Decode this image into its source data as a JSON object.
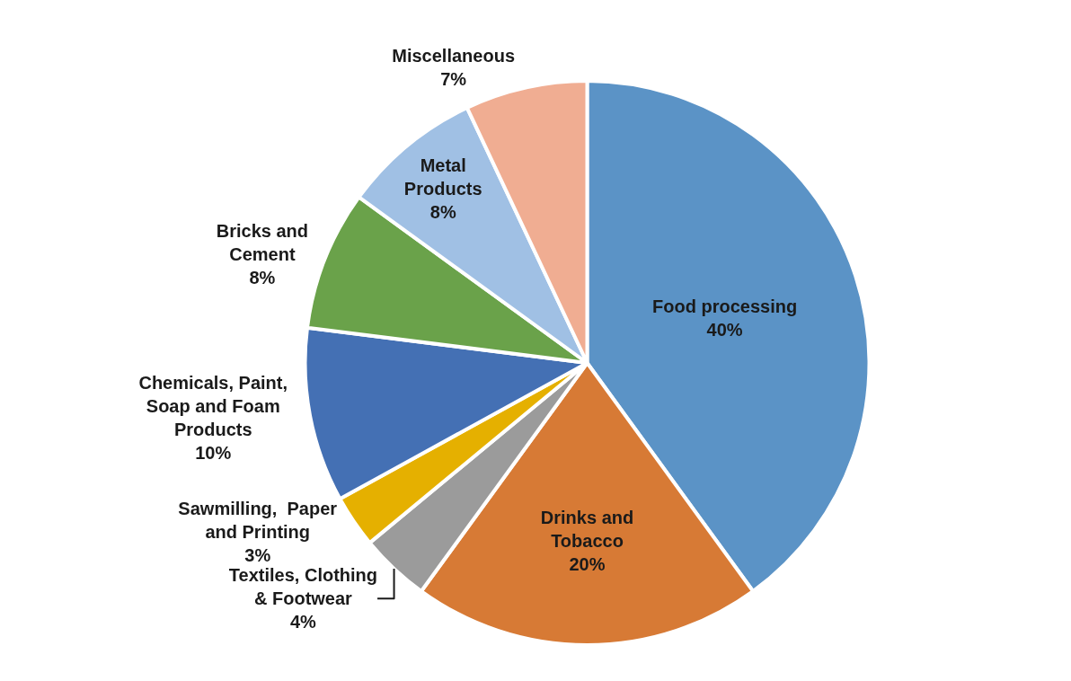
{
  "chart_data": {
    "type": "pie",
    "categories": [
      "Food processing",
      "Drinks and\nTobacco",
      "Textiles, Clothing\n& Footwear",
      "Sawmilling,  Paper\nand Printing",
      "Chemicals, Paint,\nSoap and Foam\nProducts",
      "Bricks and\nCement",
      "Metal\nProducts",
      "Miscellaneous"
    ],
    "values": [
      40,
      20,
      4,
      3,
      10,
      8,
      8,
      7
    ],
    "value_labels": [
      "40%",
      "20%",
      "4%",
      "3%",
      "10%",
      "8%",
      "8%",
      "7%"
    ],
    "colors": [
      "#5b93c6",
      "#d77a35",
      "#9b9b9b",
      "#e5b000",
      "#4470b4",
      "#6aa24a",
      "#a0c0e4",
      "#f0ad92"
    ],
    "legend": false
  }
}
